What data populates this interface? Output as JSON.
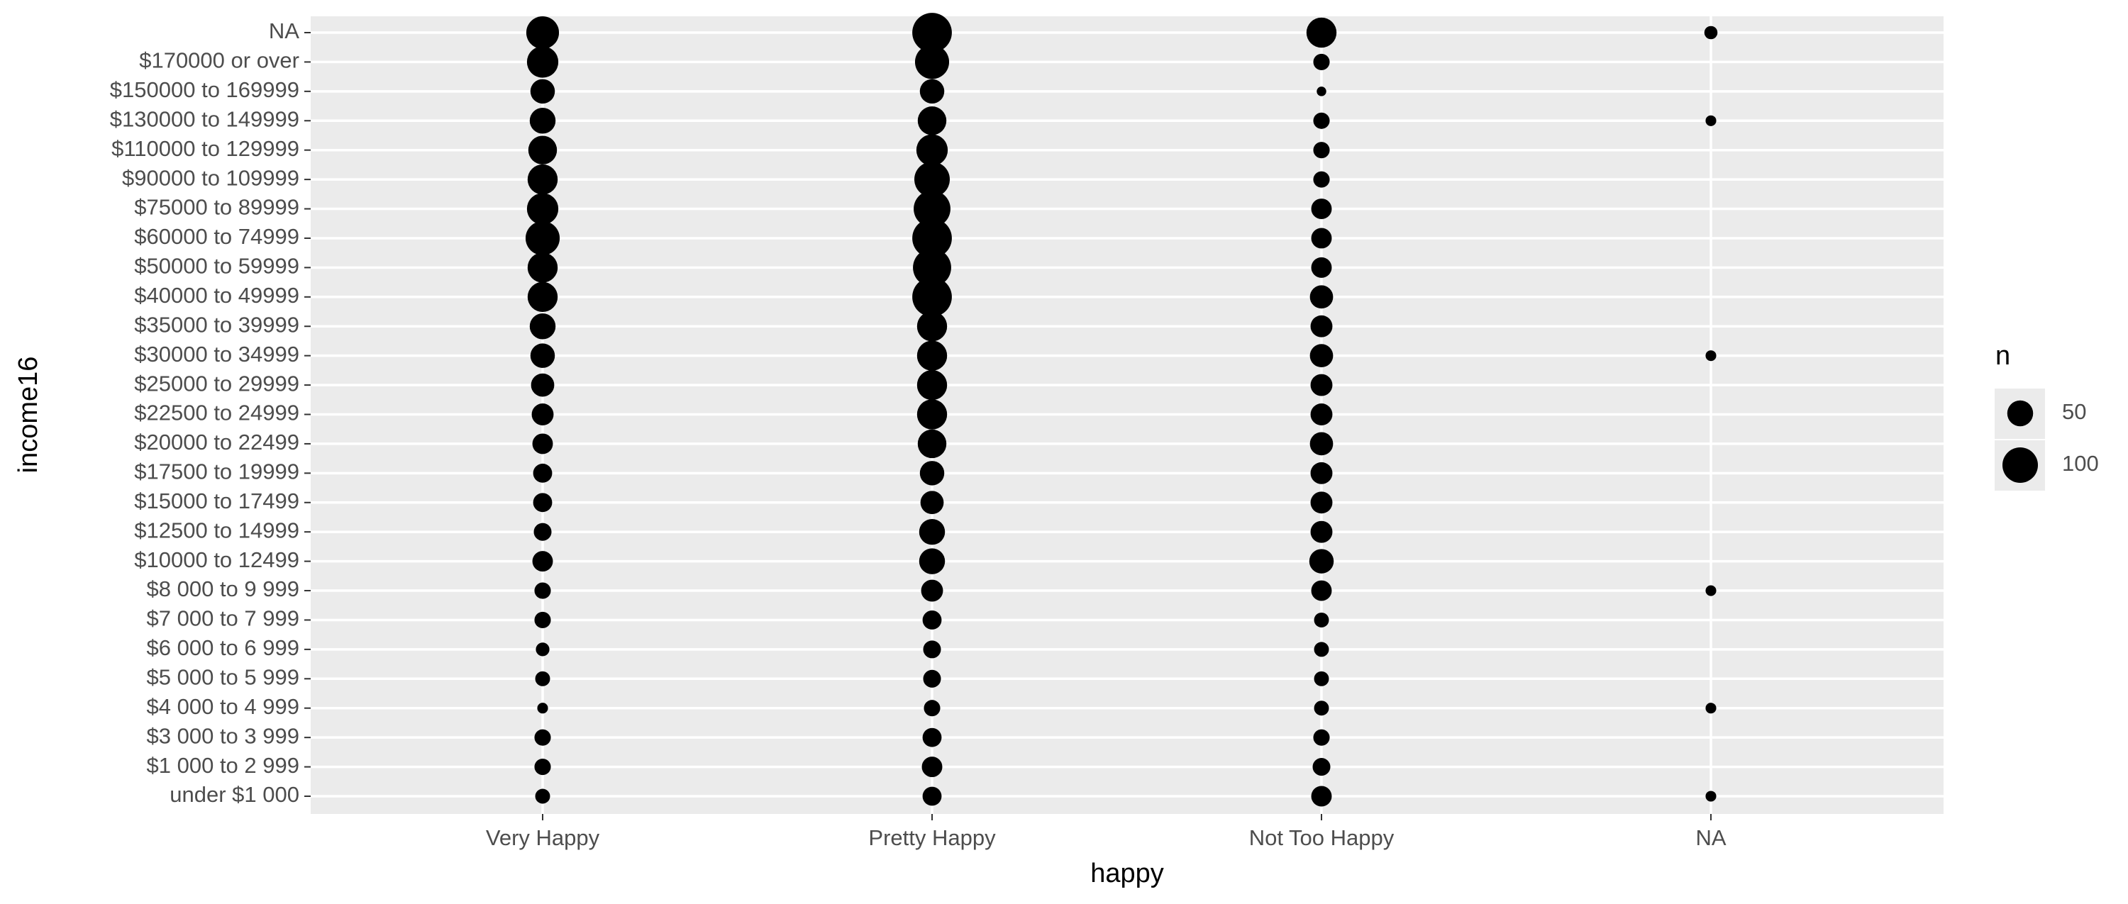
{
  "chart_data": {
    "type": "count",
    "x_label": "happy",
    "y_label": "income16",
    "categories": [
      "under $1 000",
      "$1 000 to 2 999",
      "$3 000 to 3 999",
      "$4 000 to 4 999",
      "$5 000 to 5 999",
      "$6 000 to 6 999",
      "$7 000 to 7 999",
      "$8 000 to 9 999",
      "$10000 to 12499",
      "$12500 to 14999",
      "$15000 to 17499",
      "$17500 to 19999",
      "$20000 to 22499",
      "$22500 to 24999",
      "$25000 to 29999",
      "$30000 to 34999",
      "$35000 to 39999",
      "$40000 to 49999",
      "$50000 to 59999",
      "$60000 to 74999",
      "$75000 to 89999",
      "$90000 to 109999",
      "$110000 to 129999",
      "$130000 to 149999",
      "$150000 to 169999",
      "$170000 or over",
      "NA"
    ],
    "series": [
      {
        "name": "Very Happy",
        "color": "#000000",
        "values": [
          12,
          16,
          16,
          3,
          12,
          9,
          16,
          16,
          29,
          20,
          24,
          24,
          29,
          34,
          39,
          44,
          50,
          70,
          70,
          92,
          77,
          70,
          63,
          50,
          44,
          77,
          84
        ]
      },
      {
        "name": "Pretty Happy",
        "color": "#000000",
        "values": [
          24,
          29,
          24,
          16,
          20,
          20,
          24,
          34,
          50,
          50,
          39,
          44,
          63,
          70,
          70,
          70,
          70,
          126,
          117,
          126,
          108,
          100,
          77,
          63,
          44,
          92,
          126
        ]
      },
      {
        "name": "Not Too Happy",
        "color": "#000000",
        "values": [
          29,
          20,
          16,
          12,
          12,
          12,
          12,
          29,
          44,
          34,
          34,
          34,
          39,
          34,
          34,
          39,
          34,
          39,
          29,
          29,
          29,
          16,
          16,
          16,
          1,
          16,
          70
        ]
      },
      {
        "name": "NA",
        "color": "#000000",
        "values": [
          3,
          null,
          null,
          3,
          null,
          null,
          null,
          3,
          null,
          null,
          null,
          null,
          null,
          null,
          null,
          3,
          null,
          null,
          null,
          null,
          null,
          null,
          null,
          3,
          null,
          null,
          8
        ]
      }
    ],
    "size_legend": {
      "title": "n",
      "values": [
        50,
        100
      ]
    },
    "grid": true
  }
}
